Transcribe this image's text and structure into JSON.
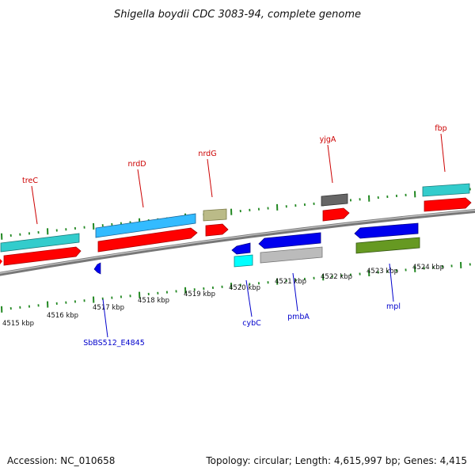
{
  "title": "Shigella boydii CDC 3083-94, complete genome",
  "footer": {
    "accession": "Accession: NC_010658",
    "stats": "Topology: circular; Length: 4,615,997 bp; Genes: 4,415"
  },
  "tick_labels": [
    "4515 kbp",
    "4516 kbp",
    "4517 kbp",
    "4518 kbp",
    "4519 kbp",
    "4520 kbp",
    "4521 kbp",
    "4522 kbp",
    "4523 kbp",
    "4524 kbp"
  ],
  "gene_labels": {
    "treC": "treC",
    "nrdD": "nrdD",
    "nrdG": "nrdG",
    "yjgA": "yjgA",
    "fbp": "fbp",
    "sb": "SbBS512_E4845",
    "cybC": "cybC",
    "pmbA": "pmbA",
    "mpl": "mpl"
  },
  "colors": {
    "forward_label": "#cc0000",
    "reverse_label": "#0000cc",
    "cds": "#ff0000",
    "gene_cyan": "#33cccc",
    "gene_sky": "#33bbff",
    "gene_khaki": "#bbbb88",
    "gene_gray": "#666666",
    "gene_blue": "#0000ee",
    "gene_aqua": "#00ffff",
    "gene_lightgray": "#bbbbbb",
    "gene_olive": "#669922",
    "ticks": "#228822",
    "backbone": "#888888"
  }
}
